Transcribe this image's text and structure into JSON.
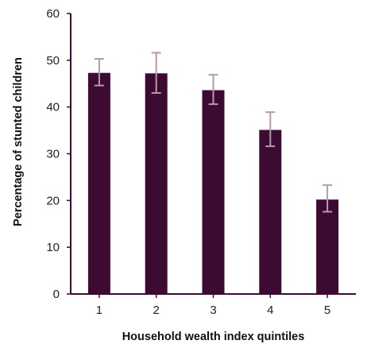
{
  "chart_data": {
    "type": "bar",
    "title": "",
    "xlabel": "Household wealth index quintiles",
    "ylabel": "Percentage of stunted children",
    "categories": [
      "1",
      "2",
      "3",
      "4",
      "5"
    ],
    "values": [
      47.3,
      47.2,
      43.6,
      35.1,
      20.2
    ],
    "error_low": [
      44.6,
      43.0,
      40.6,
      31.6,
      17.6
    ],
    "error_high": [
      50.3,
      51.6,
      46.9,
      38.9,
      23.3
    ],
    "ylim": [
      0,
      60
    ],
    "yticks": [
      "0",
      "10",
      "20",
      "30",
      "40",
      "50",
      "60"
    ],
    "grid": false,
    "legend": "none",
    "colors": {
      "bar": "#3d0a31",
      "error_bar": "#b49ab0",
      "axis": "#3d0a31"
    }
  }
}
